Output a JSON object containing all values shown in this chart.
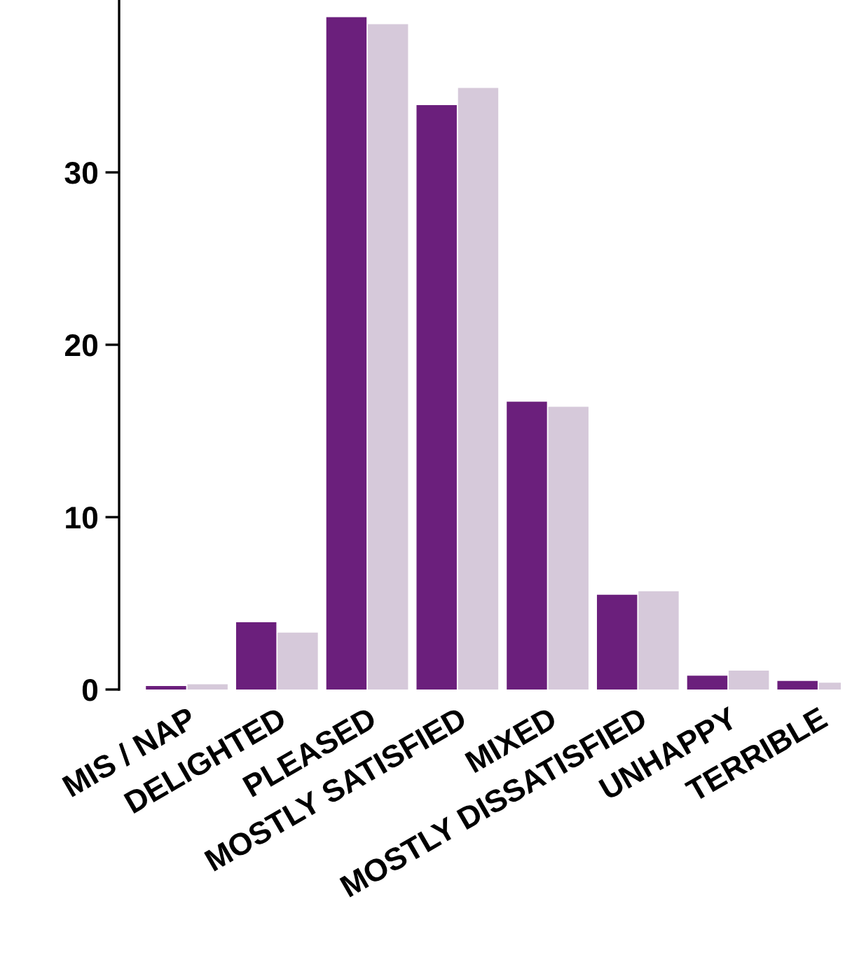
{
  "chart_data": {
    "type": "bar",
    "categories": [
      "MIS / NAP",
      "DELIGHTED",
      "PLEASED",
      "MOSTLY SATISFIED",
      "MIXED",
      "MOSTLY DISSATISFIED",
      "UNHAPPY",
      "TERRIBLE"
    ],
    "series": [
      {
        "color": "#6b1f7c",
        "values": [
          0.2,
          3.9,
          39.0,
          33.9,
          16.7,
          5.5,
          0.8,
          0.5
        ]
      },
      {
        "color": "#d6c9da",
        "values": [
          0.3,
          3.3,
          38.6,
          34.9,
          16.4,
          5.7,
          1.1,
          0.4
        ]
      }
    ],
    "ylim": [
      0,
      40
    ],
    "yticks": [
      0,
      10,
      20,
      30
    ],
    "grid": false,
    "legend": false
  }
}
